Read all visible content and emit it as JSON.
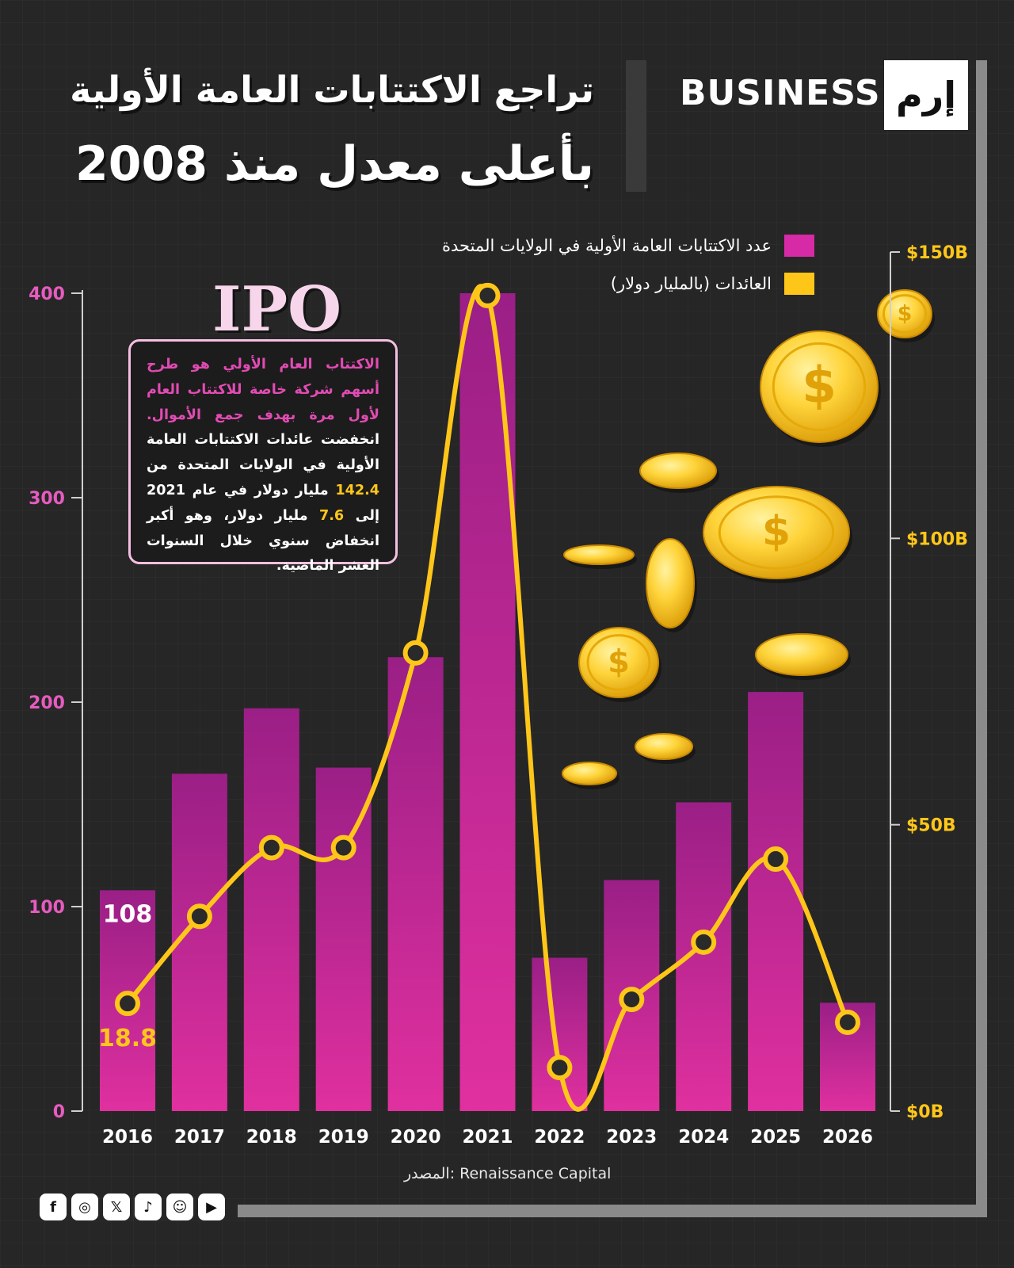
{
  "brand": {
    "word": "BUSINESS",
    "mark": "إرم"
  },
  "title": {
    "line1": "تراجع الاكتتابات العامة الأولية",
    "line2": "بأعلى معدل منذ 2008"
  },
  "legend": {
    "count_label": "عدد الاكتتابات العامة الأولية في الولايات المتحدة",
    "proceeds_label": "العائدات (بالمليار دولار)"
  },
  "ipo_label": "IPO",
  "info": {
    "definition": "الاكتتاب العام الأولي هو طرح أسهم شركة خاصة للاكتتاب العام لأول مرة بهدف جمع الأموال.",
    "body_before_1": "انخفضت عائدات الاكتتابات العامة الأولية في الولايات المتحدة من ",
    "highlight_1": "142.4",
    "body_middle": " مليار دولار في عام 2021 إلى ",
    "highlight_2": "7.6",
    "body_after": " مليار دولار، وهو أكبر انخفاض سنوي خلال السنوات العشر الماضية."
  },
  "source": "المصدر: Renaissance Capital",
  "social_icons": [
    "facebook-icon",
    "instagram-icon",
    "x-icon",
    "tiktok-icon",
    "snapchat-icon",
    "youtube-icon"
  ],
  "colors": {
    "bar": "#d62aa6",
    "bar_dark": "#9a1f86",
    "line": "#ffc61a",
    "left_axis": "#e65cc0",
    "right_axis": "#ffc61a"
  },
  "chart_data": {
    "type": "bar+line",
    "categories": [
      "2016",
      "2017",
      "2018",
      "2019",
      "2020",
      "2021",
      "2022",
      "2023",
      "2024",
      "2025",
      "2026"
    ],
    "series": [
      {
        "name": "عدد الاكتتابات العامة الأولية في الولايات المتحدة",
        "type": "bar",
        "axis": "left",
        "values": [
          108,
          165,
          197,
          168,
          222,
          400,
          75,
          113,
          151,
          205,
          53
        ]
      },
      {
        "name": "العائدات (بالمليار دولار)",
        "type": "line",
        "axis": "right",
        "values": [
          18.8,
          34,
          46,
          46,
          80,
          142.4,
          7.6,
          19.5,
          29.5,
          44,
          15.5
        ]
      }
    ],
    "left_axis": {
      "ylim": [
        0,
        400
      ],
      "ticks": [
        "0",
        "100",
        "200",
        "300",
        "400"
      ]
    },
    "right_axis": {
      "ylim": [
        0,
        150
      ],
      "ticks": [
        "$0B",
        "$50B",
        "$100B",
        "$150B"
      ]
    },
    "data_labels": {
      "bar_2016": "108",
      "line_2016": "18.8"
    },
    "grid": false
  }
}
